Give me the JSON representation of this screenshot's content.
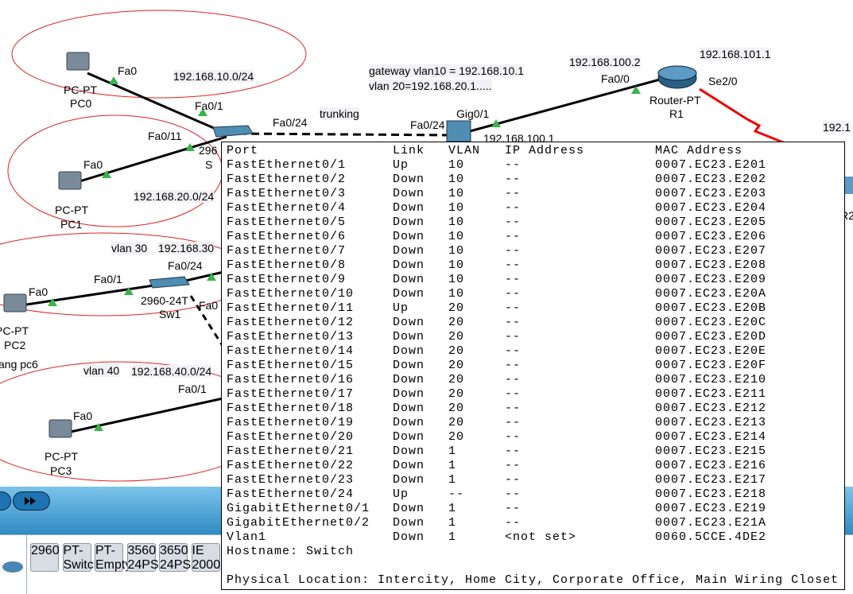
{
  "topology": {
    "labels": [
      "Fa0",
      "PC-PT",
      "PC0",
      "192.168.10.0/24",
      "Fa0/1",
      "Fa0/24",
      "trunking",
      "Fa0/24",
      "Gig0/1",
      "192.168.100.1",
      "gateway vlan10 = 192.168.10.1",
      "vlan 20=192.168.20.1.....",
      "192.168.100.2",
      "Fa0/0",
      "Router-PT",
      "R1",
      "192.168.101.1",
      "Se2/0",
      "Fa0/11",
      "296",
      "S",
      "Fa0",
      "PC-PT",
      "PC1",
      "192.168.20.0/24",
      "192.1",
      "vlan 30",
      "192.168.30",
      "Fa0/24",
      "Fa0/1",
      "Fa0",
      "2960-24T",
      "Sw1",
      "Fa0",
      "PC-PT",
      "PC2",
      "ang pc6",
      "vlan 40",
      "192.168.40.0/24",
      "Fa0/1",
      "Fa0",
      "PC-PT",
      "PC3",
      "R2"
    ]
  },
  "palette": {
    "items": [
      "2960",
      "PT-Switch",
      "PT-Empty",
      "3560 24PS",
      "3650 24PS",
      "IE 2000"
    ]
  },
  "port_table": {
    "header": [
      "Port",
      "Link",
      "VLAN",
      "IP Address",
      "MAC Address"
    ],
    "rows": [
      [
        "FastEthernet0/1",
        "Up",
        "10",
        "--",
        "0007.EC23.E201"
      ],
      [
        "FastEthernet0/2",
        "Down",
        "10",
        "--",
        "0007.EC23.E202"
      ],
      [
        "FastEthernet0/3",
        "Down",
        "10",
        "--",
        "0007.EC23.E203"
      ],
      [
        "FastEthernet0/4",
        "Down",
        "10",
        "--",
        "0007.EC23.E204"
      ],
      [
        "FastEthernet0/5",
        "Down",
        "10",
        "--",
        "0007.EC23.E205"
      ],
      [
        "FastEthernet0/6",
        "Down",
        "10",
        "--",
        "0007.EC23.E206"
      ],
      [
        "FastEthernet0/7",
        "Down",
        "10",
        "--",
        "0007.EC23.E207"
      ],
      [
        "FastEthernet0/8",
        "Down",
        "10",
        "--",
        "0007.EC23.E208"
      ],
      [
        "FastEthernet0/9",
        "Down",
        "10",
        "--",
        "0007.EC23.E209"
      ],
      [
        "FastEthernet0/10",
        "Down",
        "10",
        "--",
        "0007.EC23.E20A"
      ],
      [
        "FastEthernet0/11",
        "Up",
        "20",
        "--",
        "0007.EC23.E20B"
      ],
      [
        "FastEthernet0/12",
        "Down",
        "20",
        "--",
        "0007.EC23.E20C"
      ],
      [
        "FastEthernet0/13",
        "Down",
        "20",
        "--",
        "0007.EC23.E20D"
      ],
      [
        "FastEthernet0/14",
        "Down",
        "20",
        "--",
        "0007.EC23.E20E"
      ],
      [
        "FastEthernet0/15",
        "Down",
        "20",
        "--",
        "0007.EC23.E20F"
      ],
      [
        "FastEthernet0/16",
        "Down",
        "20",
        "--",
        "0007.EC23.E210"
      ],
      [
        "FastEthernet0/17",
        "Down",
        "20",
        "--",
        "0007.EC23.E211"
      ],
      [
        "FastEthernet0/18",
        "Down",
        "20",
        "--",
        "0007.EC23.E212"
      ],
      [
        "FastEthernet0/19",
        "Down",
        "20",
        "--",
        "0007.EC23.E213"
      ],
      [
        "FastEthernet0/20",
        "Down",
        "20",
        "--",
        "0007.EC23.E214"
      ],
      [
        "FastEthernet0/21",
        "Down",
        "1",
        "--",
        "0007.EC23.E215"
      ],
      [
        "FastEthernet0/22",
        "Down",
        "1",
        "--",
        "0007.EC23.E216"
      ],
      [
        "FastEthernet0/23",
        "Down",
        "1",
        "--",
        "0007.EC23.E217"
      ],
      [
        "FastEthernet0/24",
        "Up",
        "--",
        "--",
        "0007.EC23.E218"
      ],
      [
        "GigabitEthernet0/1",
        "Down",
        "1",
        "--",
        "0007.EC23.E219"
      ],
      [
        "GigabitEthernet0/2",
        "Down",
        "1",
        "--",
        "0007.EC23.E21A"
      ],
      [
        "Vlan1",
        "Down",
        "1",
        "<not set>",
        "0060.5CCE.4DE2"
      ]
    ],
    "hostname": "Hostname: Switch",
    "location": "Physical Location: Intercity, Home City, Corporate Office, Main Wiring Closet"
  }
}
